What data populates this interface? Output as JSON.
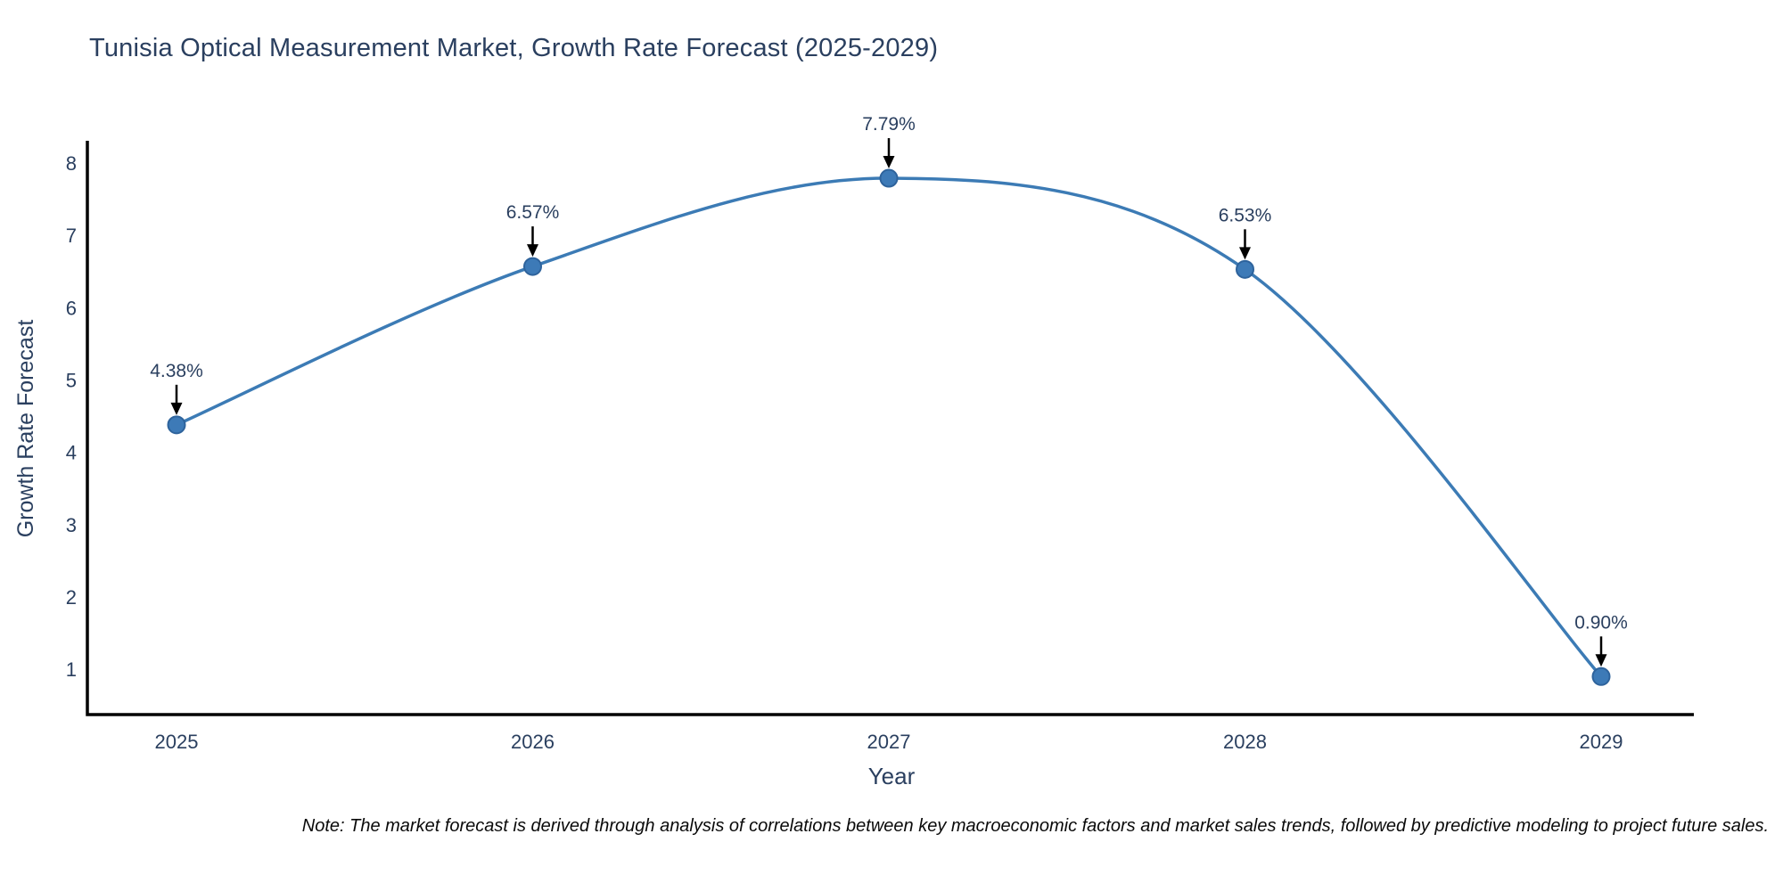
{
  "chart_data": {
    "type": "line",
    "title": "Tunisia Optical Measurement Market, Growth Rate Forecast (2025-2029)",
    "xlabel": "Year",
    "ylabel": "Growth Rate Forecast",
    "x": [
      2025,
      2026,
      2027,
      2028,
      2029
    ],
    "values": [
      4.38,
      6.57,
      7.79,
      6.53,
      0.9
    ],
    "point_labels": [
      "4.38%",
      "6.57%",
      "7.79%",
      "6.53%",
      "0.90%"
    ],
    "xticks": [
      "2025",
      "2026",
      "2027",
      "2028",
      "2029"
    ],
    "yticks": [
      1,
      2,
      3,
      4,
      5,
      6,
      7,
      8
    ],
    "ylim": [
      0.38,
      8.3
    ],
    "line_shape": "spline",
    "grid": false,
    "legend": "none",
    "colors": {
      "line": "#3c7bb5",
      "marker_fill": "#3d7ab7",
      "marker_stroke": "#2e639c",
      "text": "#2a3f5f",
      "axis": "#000000",
      "annotation_arrow": "#000000"
    }
  },
  "note": "Note: The market forecast is derived through analysis of correlations between key macroeconomic factors and market sales trends, followed by predictive modeling to project future sales."
}
